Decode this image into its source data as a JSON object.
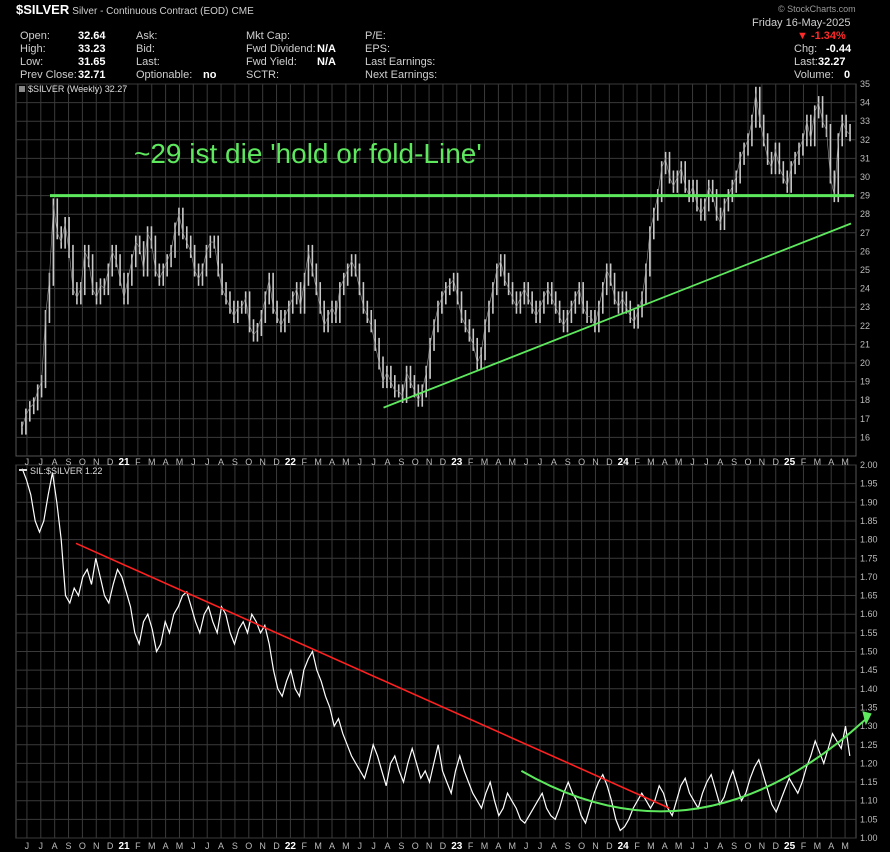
{
  "header": {
    "symbol": "$SILVER",
    "description": "Silver - Continuous Contract (EOD)",
    "exchange": "CME",
    "brand": "© StockCharts.com",
    "date": "Friday 16-May-2025",
    "change_pct": "▼ -1.34%",
    "fields": {
      "open_label": "Open:",
      "open": "32.64",
      "high_label": "High:",
      "high": "33.23",
      "low_label": "Low:",
      "low": "31.65",
      "prev_label": "Prev Close:",
      "prev": "32.71",
      "ask_label": "Ask:",
      "bid_label": "Bid:",
      "last_label": "Last:",
      "optionable_label": "Optionable:",
      "optionable": "no",
      "mktcap_label": "Mkt Cap:",
      "fwddiv_label": "Fwd Dividend:",
      "fwddiv": "N/A",
      "fwdyield_label": "Fwd Yield:",
      "fwdyield": "N/A",
      "sctr_label": "SCTR:",
      "pe_label": "P/E:",
      "eps_label": "EPS:",
      "lastearn_label": "Last Earnings:",
      "nextearn_label": "Next Earnings:",
      "chg_label": "Chg:",
      "chg": "-0.44",
      "last2_label": "Last:",
      "last2": "32.27",
      "volume_label": "Volume:",
      "volume": "0"
    }
  },
  "colors": {
    "background": "#000000",
    "grid": "#3a3a3a",
    "price_bars": "#c8c8c8",
    "ratio_line": "#ffffff",
    "green_annotation": "#5ee85e",
    "red_trendline": "#ff2020",
    "down": "#ff2b2b"
  },
  "chart_data": [
    {
      "type": "line",
      "legend": "$SILVER (Weekly) 32.27",
      "annotation": "~29 ist die 'hold or fold-Line'",
      "ylim": [
        15,
        35
      ],
      "yticks": [
        "16",
        "17",
        "18",
        "19",
        "20",
        "21",
        "22",
        "23",
        "24",
        "25",
        "26",
        "27",
        "28",
        "29",
        "30",
        "31",
        "32",
        "33",
        "34",
        "35"
      ],
      "time_range": [
        "2020-06",
        "2025-05"
      ],
      "x_axis_labels": [
        "J",
        "J",
        "A",
        "S",
        "O",
        "N",
        "D",
        "21",
        "F",
        "M",
        "A",
        "M",
        "J",
        "J",
        "A",
        "S",
        "O",
        "N",
        "D",
        "22",
        "F",
        "M",
        "A",
        "M",
        "J",
        "J",
        "A",
        "S",
        "O",
        "N",
        "D",
        "23",
        "F",
        "M",
        "A",
        "M",
        "J",
        "J",
        "A",
        "S",
        "O",
        "N",
        "D",
        "24",
        "F",
        "M",
        "A",
        "M",
        "J",
        "J",
        "A",
        "S",
        "O",
        "N",
        "D",
        "25",
        "F",
        "M",
        "A",
        "M"
      ],
      "series": [
        {
          "values": [
            16.5,
            17.2,
            17.6,
            17.8,
            18.5,
            19.0,
            22.5,
            24.5,
            28.5,
            27.0,
            26.5,
            27.5,
            26.0,
            24.0,
            23.5,
            24.0,
            26.0,
            25.5,
            24.0,
            23.5,
            24.2,
            24.0,
            25.0,
            26.0,
            25.5,
            24.5,
            23.5,
            24.5,
            25.5,
            26.5,
            26.2,
            25.0,
            27.0,
            26.5,
            25.0,
            24.5,
            25.0,
            25.5,
            26.0,
            27.2,
            28.0,
            27.0,
            26.5,
            26.0,
            25.0,
            24.5,
            25.0,
            26.0,
            26.5,
            26.5,
            25.0,
            24.0,
            23.5,
            23.0,
            22.5,
            23.0,
            23.0,
            23.5,
            22.0,
            21.5,
            21.8,
            22.5,
            23.5,
            24.5,
            23.0,
            22.5,
            22.0,
            22.5,
            23.0,
            23.5,
            24.0,
            23.0,
            24.5,
            26.0,
            25.0,
            24.0,
            23.0,
            22.0,
            22.5,
            23.0,
            22.5,
            24.0,
            24.5,
            25.0,
            25.5,
            25.0,
            24.0,
            23.0,
            22.5,
            22.0,
            21.0,
            20.0,
            19.0,
            19.5,
            19.0,
            18.5,
            18.5,
            18.2,
            19.5,
            19.0,
            18.5,
            18.0,
            18.5,
            19.5,
            21.0,
            22.0,
            23.0,
            23.5,
            24.0,
            24.2,
            24.5,
            23.5,
            22.5,
            22.0,
            21.5,
            21.0,
            20.0,
            20.5,
            22.0,
            23.0,
            24.0,
            25.0,
            25.5,
            24.5,
            24.0,
            23.5,
            23.0,
            23.5,
            24.0,
            23.5,
            23.0,
            22.5,
            23.0,
            23.5,
            24.0,
            23.5,
            23.0,
            22.5,
            22.0,
            22.5,
            23.0,
            23.5,
            24.0,
            23.0,
            22.5,
            22.5,
            22.0,
            23.0,
            24.0,
            25.0,
            24.5,
            23.5,
            23.0,
            23.5,
            23.0,
            22.5,
            22.2,
            22.8,
            23.5,
            25.0,
            27.0,
            28.0,
            29.0,
            30.5,
            31.0,
            30.0,
            29.5,
            30.0,
            30.5,
            29.5,
            29.0,
            29.5,
            28.5,
            28.0,
            28.5,
            29.5,
            29.0,
            28.0,
            27.5,
            28.5,
            29.0,
            29.5,
            30.0,
            31.0,
            31.5,
            32.0,
            33.0,
            34.5,
            33.0,
            32.0,
            31.0,
            30.5,
            31.5,
            30.5,
            30.0,
            29.5,
            30.5,
            31.0,
            31.5,
            32.0,
            33.0,
            32.0,
            33.5,
            34.0,
            33.0,
            32.5,
            30.0,
            29.0,
            32.0,
            33.0,
            32.5,
            32.27
          ]
        },
        {
          "name": "horizontal line",
          "y": 29
        },
        {
          "name": "rising trendline",
          "x": [
            "2022-08",
            "2025-05"
          ],
          "y": [
            17.6,
            27.5
          ]
        }
      ]
    },
    {
      "type": "line",
      "legend": "SIL:$SILVER 1.22",
      "ylim": [
        1.0,
        2.0
      ],
      "yticks": [
        "1.00",
        "1.05",
        "1.10",
        "1.15",
        "1.20",
        "1.25",
        "1.30",
        "1.35",
        "1.40",
        "1.45",
        "1.50",
        "1.55",
        "1.60",
        "1.65",
        "1.70",
        "1.75",
        "1.80",
        "1.85",
        "1.90",
        "1.95",
        "2.00"
      ],
      "time_range": [
        "2020-06",
        "2025-05"
      ],
      "x_axis_labels": [
        "J",
        "J",
        "A",
        "S",
        "O",
        "N",
        "D",
        "21",
        "F",
        "M",
        "A",
        "M",
        "J",
        "J",
        "A",
        "S",
        "O",
        "N",
        "D",
        "22",
        "F",
        "M",
        "A",
        "M",
        "J",
        "J",
        "A",
        "S",
        "O",
        "N",
        "D",
        "23",
        "F",
        "M",
        "A",
        "M",
        "J",
        "J",
        "A",
        "S",
        "O",
        "N",
        "D",
        "24",
        "F",
        "M",
        "A",
        "M",
        "J",
        "J",
        "A",
        "S",
        "O",
        "N",
        "D",
        "25",
        "F",
        "M",
        "A",
        "M"
      ],
      "series": [
        {
          "values": [
            1.99,
            1.96,
            1.92,
            1.85,
            1.82,
            1.85,
            1.92,
            1.98,
            1.9,
            1.8,
            1.65,
            1.63,
            1.67,
            1.65,
            1.7,
            1.72,
            1.68,
            1.75,
            1.7,
            1.65,
            1.63,
            1.68,
            1.72,
            1.7,
            1.66,
            1.62,
            1.55,
            1.52,
            1.58,
            1.6,
            1.56,
            1.5,
            1.52,
            1.58,
            1.55,
            1.6,
            1.62,
            1.65,
            1.66,
            1.62,
            1.58,
            1.55,
            1.6,
            1.62,
            1.58,
            1.55,
            1.62,
            1.6,
            1.55,
            1.52,
            1.56,
            1.58,
            1.55,
            1.6,
            1.58,
            1.55,
            1.57,
            1.52,
            1.45,
            1.4,
            1.38,
            1.42,
            1.45,
            1.4,
            1.38,
            1.45,
            1.48,
            1.5,
            1.45,
            1.42,
            1.38,
            1.35,
            1.3,
            1.32,
            1.28,
            1.25,
            1.22,
            1.2,
            1.18,
            1.16,
            1.2,
            1.25,
            1.22,
            1.18,
            1.14,
            1.2,
            1.22,
            1.18,
            1.15,
            1.2,
            1.24,
            1.2,
            1.16,
            1.18,
            1.15,
            1.2,
            1.25,
            1.18,
            1.15,
            1.12,
            1.18,
            1.22,
            1.18,
            1.15,
            1.12,
            1.1,
            1.08,
            1.12,
            1.15,
            1.1,
            1.06,
            1.08,
            1.12,
            1.1,
            1.08,
            1.05,
            1.04,
            1.06,
            1.08,
            1.1,
            1.12,
            1.08,
            1.06,
            1.05,
            1.08,
            1.12,
            1.15,
            1.12,
            1.1,
            1.06,
            1.04,
            1.08,
            1.12,
            1.15,
            1.17,
            1.14,
            1.1,
            1.05,
            1.02,
            1.03,
            1.05,
            1.08,
            1.1,
            1.12,
            1.1,
            1.08,
            1.1,
            1.14,
            1.12,
            1.08,
            1.06,
            1.1,
            1.14,
            1.16,
            1.12,
            1.1,
            1.08,
            1.12,
            1.15,
            1.17,
            1.13,
            1.09,
            1.11,
            1.15,
            1.18,
            1.14,
            1.1,
            1.12,
            1.16,
            1.19,
            1.21,
            1.17,
            1.13,
            1.09,
            1.07,
            1.1,
            1.13,
            1.16,
            1.14,
            1.12,
            1.15,
            1.19,
            1.22,
            1.26,
            1.23,
            1.2,
            1.24,
            1.28,
            1.26,
            1.24,
            1.3,
            1.22
          ]
        },
        {
          "name": "falling trendline",
          "x": [
            "2020-10",
            "2024-04"
          ],
          "y": [
            1.79,
            1.08
          ]
        },
        {
          "name": "rounding-bottom arc",
          "x": [
            "2023-06",
            "2024-06",
            "2025-05"
          ],
          "y": [
            1.18,
            1.01,
            1.29
          ]
        }
      ]
    }
  ]
}
